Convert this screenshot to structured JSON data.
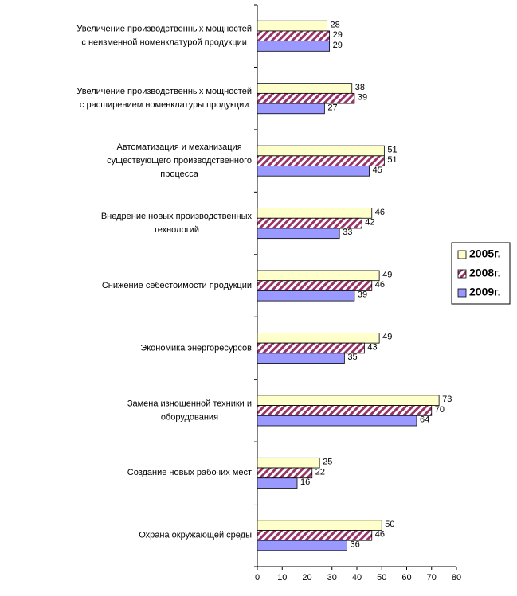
{
  "chart_data": {
    "type": "hbar",
    "categories": [
      [
        "Увеличение производственных мощностей",
        "с неизменной номенклатурой продукции"
      ],
      [
        "Увеличение производственных мощностей",
        "с расширением номенклатуры продукции"
      ],
      [
        "Автоматизация и механизация",
        "существующего производственного",
        "процесса"
      ],
      [
        "Внедрение новых производственных",
        "технологий"
      ],
      [
        "Снижение себестоимости продукции"
      ],
      [
        "Экономика энергоресурсов"
      ],
      [
        "Замена изношенной техники и",
        "оборудования"
      ],
      [
        "Создание новых рабочих мест"
      ],
      [
        "Охрана окружающей среды"
      ]
    ],
    "series": [
      {
        "name": "2005г.",
        "color": "#ffffcc",
        "values": [
          28,
          38,
          51,
          46,
          49,
          49,
          73,
          25,
          50
        ]
      },
      {
        "name": "2008г.",
        "color": "#993366",
        "hatch": true,
        "values": [
          29,
          39,
          51,
          42,
          46,
          43,
          70,
          22,
          46
        ]
      },
      {
        "name": "2009г.",
        "color": "#9999ff",
        "values": [
          29,
          27,
          45,
          33,
          39,
          35,
          64,
          16,
          36
        ]
      }
    ],
    "xlim": [
      0,
      80
    ],
    "xticks": [
      0,
      10,
      20,
      30,
      40,
      50,
      60,
      70,
      80
    ],
    "legend": "right"
  }
}
